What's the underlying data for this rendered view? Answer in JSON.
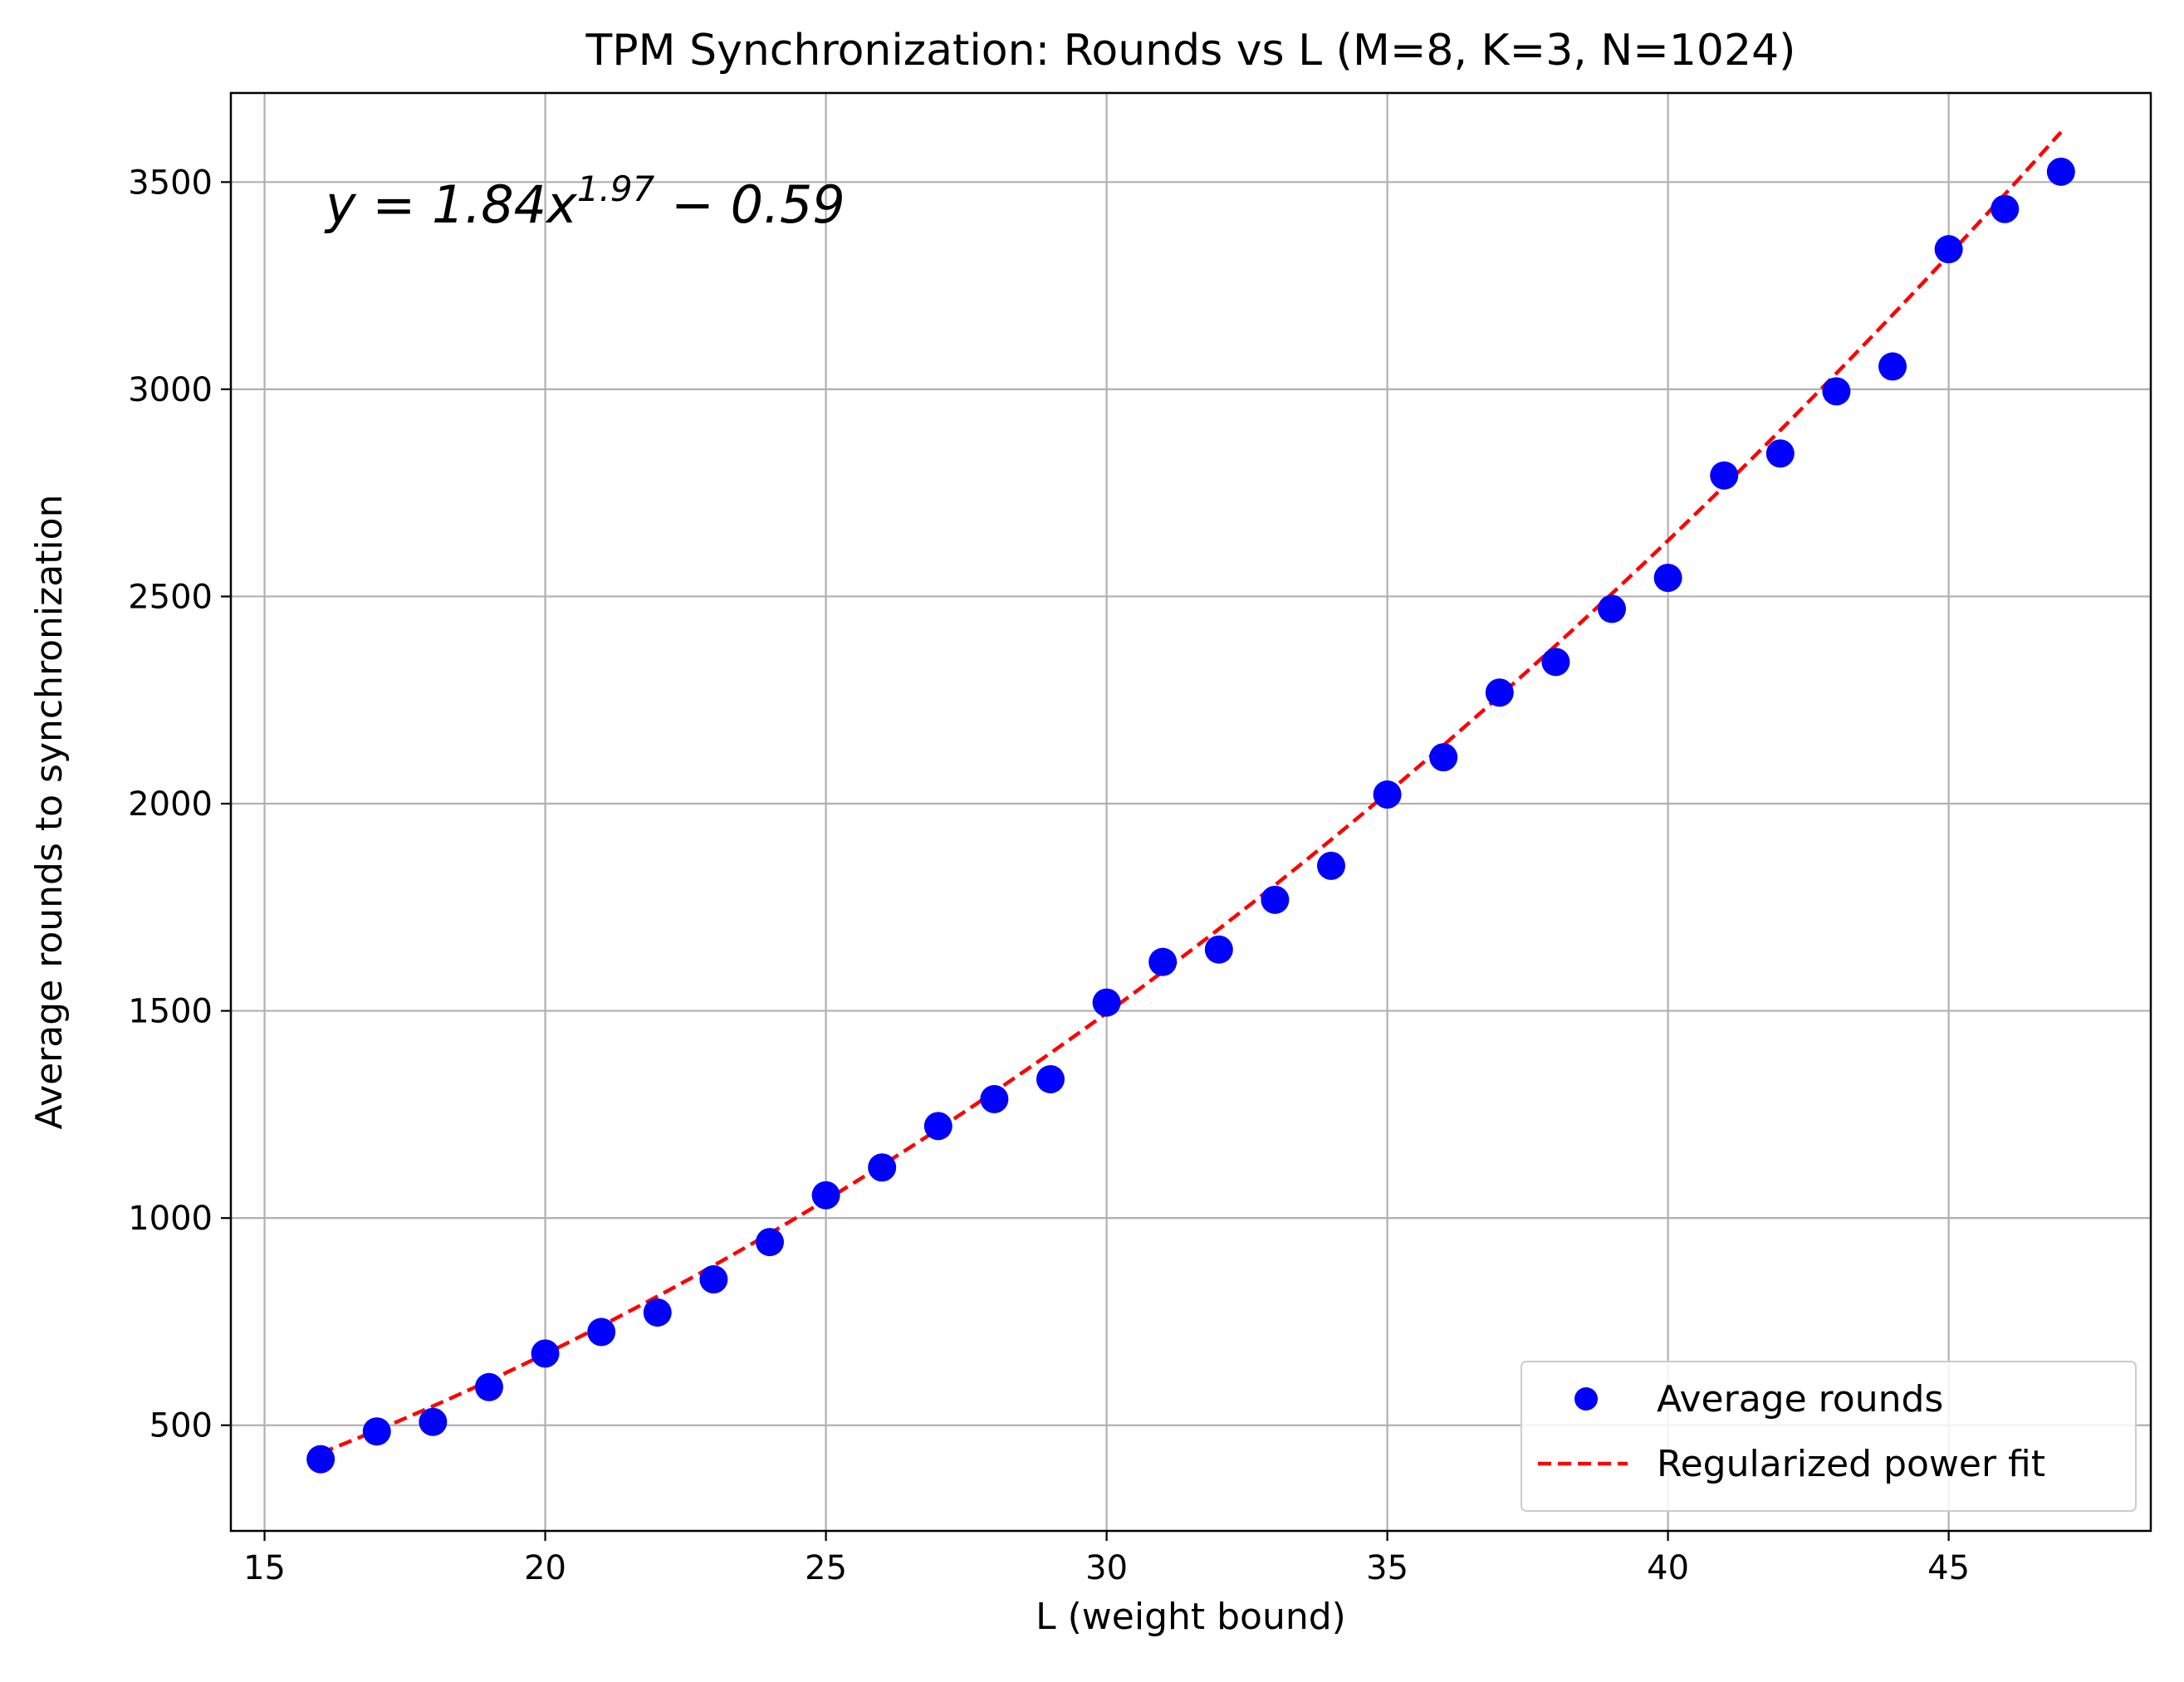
{
  "chart_data": {
    "type": "scatter",
    "title": "TPM Synchronization: Rounds vs L (M=8, K=3, N=1024)",
    "xlabel": "L (weight bound)",
    "ylabel": "Average rounds to synchronization",
    "xlim": [
      14.4,
      48.6
    ],
    "ylim": [
      245,
      3715
    ],
    "xticks": [
      15,
      20,
      25,
      30,
      35,
      40,
      45
    ],
    "yticks": [
      500,
      1000,
      1500,
      2000,
      2500,
      3000,
      3500
    ],
    "grid": true,
    "legend_position": "bottom-right",
    "annotation": {
      "text": "y = 1.84x^1.97 − 0.59",
      "prefix": "y = 1.84x",
      "exponent": "1.97",
      "suffix": " − 0.59"
    },
    "series": [
      {
        "name": "Average rounds",
        "kind": "scatter",
        "color": "#0000ff",
        "x": [
          16,
          17,
          18,
          19,
          20,
          21,
          22,
          23,
          24,
          25,
          26,
          27,
          28,
          29,
          30,
          31,
          32,
          33,
          34,
          35,
          36,
          37,
          38,
          39,
          40,
          41,
          42,
          43,
          44,
          45,
          46,
          47
        ],
        "y": [
          418,
          485,
          508,
          592,
          673,
          725,
          772,
          852,
          942,
          1055,
          1122,
          1222,
          1287,
          1335,
          1520,
          1618,
          1648,
          1768,
          1850,
          2022,
          2112,
          2268,
          2342,
          2470,
          2545,
          2792,
          2845,
          2995,
          3055,
          3338,
          3435,
          3525
        ]
      },
      {
        "name": "Regularized power fit",
        "kind": "line",
        "style": "dashed",
        "color": "#ff0000",
        "a": 1.84,
        "b": 1.97,
        "c": -0.59,
        "x_range": [
          16,
          47
        ]
      }
    ]
  }
}
